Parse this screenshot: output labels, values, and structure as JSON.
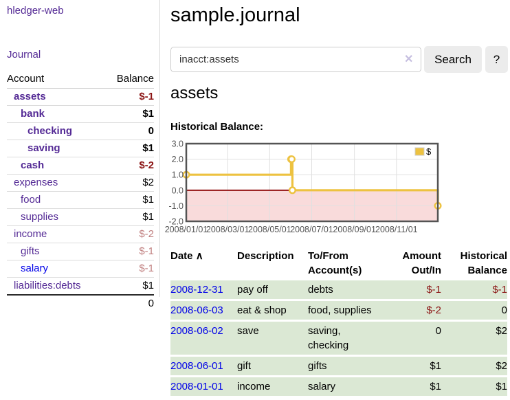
{
  "app": {
    "title": "hledger-web"
  },
  "sidebar": {
    "journal_link": "Journal",
    "table": {
      "account_header": "Account",
      "balance_header": "Balance",
      "rows": [
        {
          "account": "assets",
          "balance": "$-1",
          "depth": 1,
          "bold": true,
          "link_color": "purple"
        },
        {
          "account": "bank",
          "balance": "$1",
          "depth": 2,
          "bold": true,
          "link_color": "purple"
        },
        {
          "account": "checking",
          "balance": "0",
          "depth": 3,
          "bold": true,
          "link_color": "purple"
        },
        {
          "account": "saving",
          "balance": "$1",
          "depth": 3,
          "bold": true,
          "link_color": "purple"
        },
        {
          "account": "cash",
          "balance": "$-2",
          "depth": 2,
          "bold": true,
          "link_color": "purple"
        },
        {
          "account": "expenses",
          "balance": "$2",
          "depth": 1,
          "bold": false,
          "link_color": "purple"
        },
        {
          "account": "food",
          "balance": "$1",
          "depth": 2,
          "bold": false,
          "link_color": "purple"
        },
        {
          "account": "supplies",
          "balance": "$1",
          "depth": 2,
          "bold": false,
          "link_color": "purple"
        },
        {
          "account": "income",
          "balance": "$-2",
          "depth": 1,
          "bold": false,
          "link_color": "purple"
        },
        {
          "account": "gifts",
          "balance": "$-1",
          "depth": 2,
          "bold": false,
          "link_color": "purple"
        },
        {
          "account": "salary",
          "balance": "$-1",
          "depth": 2,
          "bold": false,
          "link_color": "blue"
        },
        {
          "account": "liabilities:debts",
          "balance": "$1",
          "depth": 1,
          "bold": false,
          "link_color": "purple"
        }
      ],
      "total": "0"
    }
  },
  "main": {
    "title": "sample.journal",
    "search": {
      "value": "inacct:assets",
      "clear_icon": "✕",
      "search_button": "Search",
      "help_button": "?"
    },
    "account_heading": "assets",
    "chart_label": "Historical Balance:"
  },
  "chart_data": {
    "type": "line",
    "step": true,
    "title": "Historical Balance",
    "series": [
      {
        "name": "$",
        "color": "#edc240",
        "points": [
          {
            "date": "2008-01-01",
            "value": 1
          },
          {
            "date": "2008-06-01",
            "value": 2
          },
          {
            "date": "2008-06-02",
            "value": 2
          },
          {
            "date": "2008-06-03",
            "value": 0
          },
          {
            "date": "2008-12-31",
            "value": -1
          }
        ]
      }
    ],
    "ylim": [
      -2,
      3
    ],
    "yticks": [
      "3.0",
      "2.0",
      "1.0",
      "0.0",
      "-1.0",
      "-2.0"
    ],
    "xticks": [
      "2008/01/01",
      "2008/03/01",
      "2008/05/01",
      "2008/07/01",
      "2008/09/01",
      "2008/11/01"
    ],
    "x_start_date": "2008-01-01",
    "x_end_date": "2008-12-31",
    "grid": true,
    "legend_position": "top-right",
    "negative_region_fill": "#f9dbdb",
    "zero_line_color": "#8b0000",
    "border_color": "#545454",
    "grid_color": "#e0e0e0"
  },
  "register": {
    "headers": {
      "date": "Date",
      "sort_icon": "∧",
      "description": "Description",
      "accounts": "To/From Account(s)",
      "amount": "Amount Out/In",
      "balance": "Historical Balance"
    },
    "rows": [
      {
        "date": "2008-12-31",
        "description": "pay off",
        "accounts": "debts",
        "amount": "$-1",
        "balance": "$-1"
      },
      {
        "date": "2008-06-03",
        "description": "eat & shop",
        "accounts": "food, supplies",
        "amount": "$-2",
        "balance": "0"
      },
      {
        "date": "2008-06-02",
        "description": "save",
        "accounts": "saving, checking",
        "amount": "0",
        "balance": "$2"
      },
      {
        "date": "2008-06-01",
        "description": "gift",
        "accounts": "gifts",
        "amount": "$1",
        "balance": "$2"
      },
      {
        "date": "2008-01-01",
        "description": "income",
        "accounts": "salary",
        "amount": "$1",
        "balance": "$1"
      }
    ]
  },
  "colors": {
    "link_purple": "#542a95",
    "link_blue": "#0000e8",
    "negative_strong": "#8b1414",
    "negative_soft": "#c07f7f",
    "row_green": "#dbe8d4",
    "series_yellow": "#edc240",
    "chart_pink": "#f9dbdb",
    "zero_line": "#8b0000",
    "button_gray": "#ececec"
  }
}
